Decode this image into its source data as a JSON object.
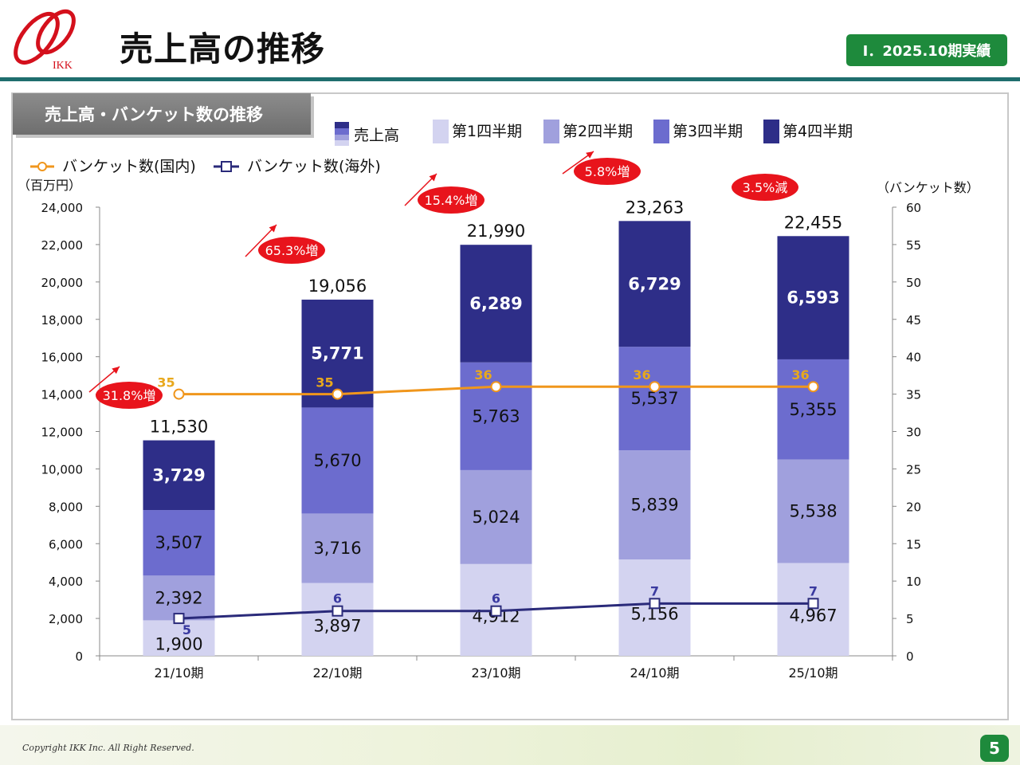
{
  "header": {
    "logo_text": "IKK",
    "title": "売上高の推移",
    "period_badge": "Ⅰ．2025.10期実績"
  },
  "section_title": "売上高・バンケット数の推移",
  "colors": {
    "q1": "#d3d3f0",
    "q2": "#a0a0dd",
    "q3": "#6c6cce",
    "q4": "#2e2e88",
    "domestic_line": "#f0961c",
    "overseas_line": "#2a2a7a",
    "growth_badge": "#e8141c",
    "badge_green": "#1e8a3c"
  },
  "chart_data": {
    "type": "bar",
    "stacked": true,
    "categories": [
      "21/10期",
      "22/10期",
      "23/10期",
      "24/10期",
      "25/10期"
    ],
    "series": [
      {
        "name": "第1四半期",
        "values": [
          1900,
          3897,
          4912,
          5156,
          4967
        ]
      },
      {
        "name": "第2四半期",
        "values": [
          2392,
          3716,
          5024,
          5839,
          5538
        ]
      },
      {
        "name": "第3四半期",
        "values": [
          3507,
          5670,
          5763,
          5537,
          5355
        ]
      },
      {
        "name": "第4四半期",
        "values": [
          3729,
          5771,
          6289,
          6729,
          6593
        ]
      }
    ],
    "totals": [
      "11,530",
      "19,056",
      "21,990",
      "23,263",
      "22,455"
    ],
    "line_series": [
      {
        "name": "バンケット数(国内)",
        "values": [
          35,
          35,
          36,
          36,
          36
        ],
        "axis": "right"
      },
      {
        "name": "バンケット数(海外)",
        "values": [
          5,
          6,
          6,
          7,
          7
        ],
        "axis": "right"
      }
    ],
    "growth_labels": [
      "31.8%増",
      "65.3%増",
      "15.4%増",
      "5.8%増",
      "3.5%減"
    ],
    "left_axis": {
      "label": "（百万円）",
      "ylim": [
        0,
        24000
      ],
      "ticks": [
        "0",
        "2,000",
        "4,000",
        "6,000",
        "8,000",
        "10,000",
        "12,000",
        "14,000",
        "16,000",
        "18,000",
        "20,000",
        "22,000",
        "24,000"
      ]
    },
    "right_axis": {
      "label": "（バンケット数）",
      "ylim": [
        0,
        60
      ],
      "ticks": [
        "0",
        "5",
        "10",
        "15",
        "20",
        "25",
        "30",
        "35",
        "40",
        "45",
        "50",
        "55",
        "60"
      ]
    },
    "legend": {
      "sales_label": "売上高",
      "quarters": [
        "第1四半期",
        "第2四半期",
        "第3四半期",
        "第4四半期"
      ],
      "domestic": "バンケット数(国内)",
      "overseas": "バンケット数(海外)"
    }
  },
  "footer": {
    "copyright": "Copyright IKK Inc. All Right Reserved.",
    "page_number": "5"
  }
}
